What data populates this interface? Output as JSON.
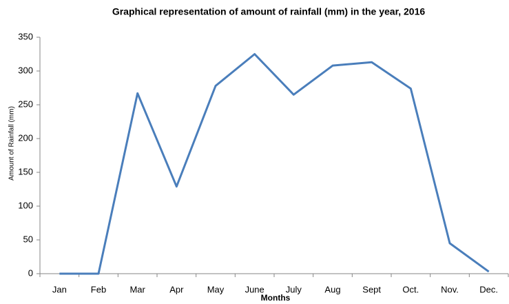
{
  "chart_data": {
    "type": "line",
    "title": "Graphical representation of amount of rainfall (mm) in the year, 2016",
    "x_label": "Months",
    "y_label": "Amount of Rainfall (mm)",
    "categories": [
      "Jan",
      "Feb",
      "Mar",
      "Apr",
      "May",
      "June",
      "July",
      "Aug",
      "Sept",
      "Oct.",
      "Nov.",
      "Dec."
    ],
    "series": [
      {
        "name": "Rainfall",
        "color": "#4a7ebb",
        "values": [
          0,
          0,
          267,
          129,
          278,
          325,
          265,
          308,
          313,
          274,
          45,
          3
        ]
      }
    ],
    "ylim": [
      0,
      350
    ],
    "yticks": [
      0,
      50,
      100,
      150,
      200,
      250,
      300,
      350
    ],
    "grid": false
  }
}
